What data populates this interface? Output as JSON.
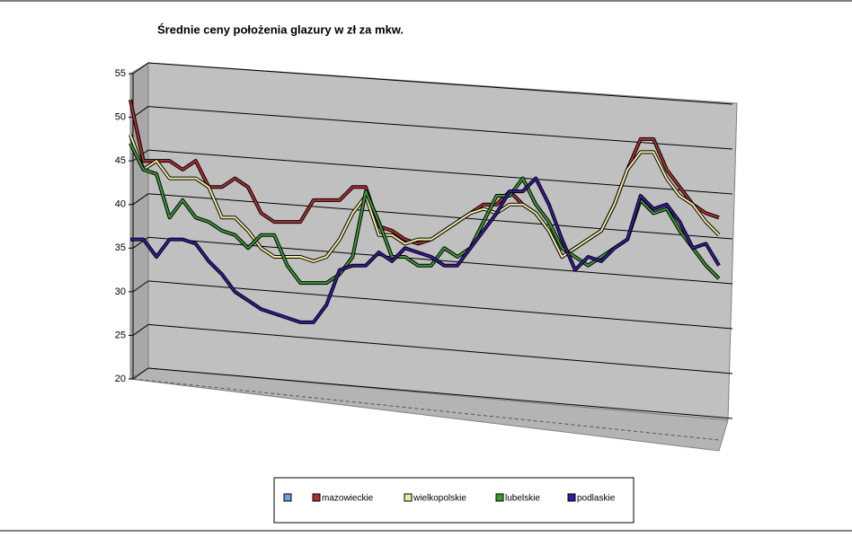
{
  "chart_data": {
    "type": "line",
    "title": "Średnie ceny położenia glazury w zł za mkw.",
    "ylim": [
      20,
      55
    ],
    "yticks": [
      20,
      25,
      30,
      35,
      40,
      45,
      50,
      55
    ],
    "grid": true,
    "series": [
      {
        "name": "mazowieckie",
        "color": "#b03030",
        "values": [
          52,
          45,
          45,
          45,
          44,
          45,
          42,
          42,
          43,
          42,
          39,
          38,
          38,
          38,
          40.5,
          40.5,
          40.5,
          42,
          42,
          37.5,
          37,
          36,
          35.5,
          36,
          37,
          38,
          39,
          40,
          40,
          41.5,
          40,
          39,
          37,
          34,
          35,
          36,
          37,
          40,
          44,
          47.5,
          47.5,
          44,
          42,
          40,
          39,
          38.5
        ]
      },
      {
        "name": "wielkopolskie",
        "color": "#f0eaa0",
        "values": [
          48,
          44,
          45,
          43,
          43,
          43,
          42,
          38.5,
          38.5,
          37,
          35,
          34,
          34,
          34,
          33.5,
          34,
          36,
          39,
          41,
          36.5,
          36.5,
          35.5,
          36,
          36,
          37,
          38,
          39,
          39.5,
          39,
          40,
          40,
          39,
          37,
          34,
          35,
          36,
          37,
          40,
          44,
          46,
          46,
          43,
          41,
          40,
          38,
          36.5
        ]
      },
      {
        "name": "lubelskie",
        "color": "#3a9a3a",
        "values": [
          47,
          44,
          43.5,
          38.5,
          40.5,
          38.5,
          38,
          37,
          36.5,
          35,
          36.5,
          36.5,
          33,
          31,
          31,
          31,
          32,
          34,
          41.5,
          38,
          34,
          34,
          33,
          33,
          35,
          34,
          35,
          38,
          41,
          41,
          43,
          40,
          38,
          35,
          34,
          33,
          34,
          35,
          36,
          40.5,
          39,
          39.5,
          37,
          35,
          33,
          31.5
        ]
      },
      {
        "name": "podlaskie",
        "color": "#3a1aa0",
        "values": [
          36,
          36,
          34,
          36,
          36,
          35.5,
          33.5,
          32,
          30,
          29,
          28,
          27.5,
          27,
          26.5,
          26.5,
          28.5,
          32.5,
          33,
          33,
          34.5,
          33.5,
          35,
          34.5,
          34,
          33,
          33,
          35,
          37,
          39,
          41.5,
          41.5,
          43,
          40,
          36,
          32.5,
          34,
          33.5,
          35,
          36,
          41,
          39.5,
          40,
          38,
          35,
          35.5,
          33
        ]
      }
    ]
  }
}
